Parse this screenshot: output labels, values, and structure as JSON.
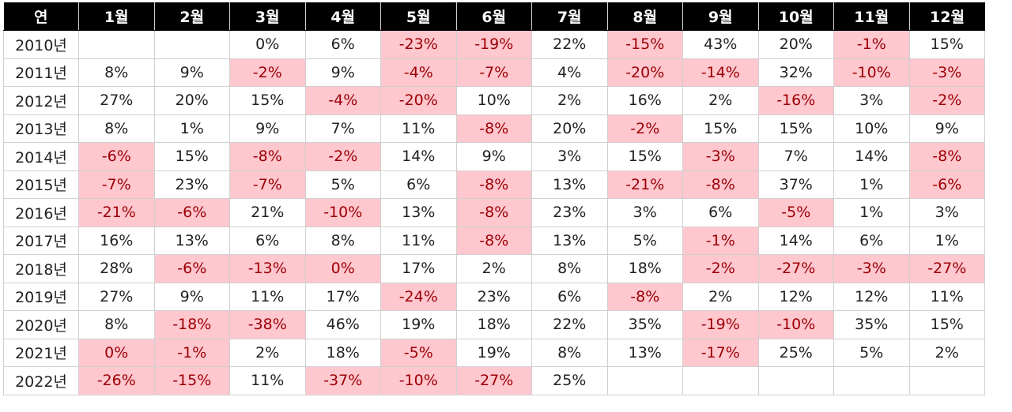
{
  "chart_data": {
    "type": "table",
    "columns": [
      "연",
      "1월",
      "2월",
      "3월",
      "4월",
      "5월",
      "6월",
      "7월",
      "8월",
      "9월",
      "10월",
      "11월",
      "12월"
    ],
    "rows": [
      {
        "year": "2010년",
        "values": [
          "",
          "",
          "0%",
          "6%",
          "-23%",
          "-19%",
          "22%",
          "-15%",
          "43%",
          "20%",
          "-1%",
          "15%"
        ]
      },
      {
        "year": "2011년",
        "values": [
          "8%",
          "9%",
          "-2%",
          "9%",
          "-4%",
          "-7%",
          "4%",
          "-20%",
          "-14%",
          "32%",
          "-10%",
          "-3%"
        ]
      },
      {
        "year": "2012년",
        "values": [
          "27%",
          "20%",
          "15%",
          "-4%",
          "-20%",
          "10%",
          "2%",
          "16%",
          "2%",
          "-16%",
          "3%",
          "-2%"
        ]
      },
      {
        "year": "2013년",
        "values": [
          "8%",
          "1%",
          "9%",
          "7%",
          "11%",
          "-8%",
          "20%",
          "-2%",
          "15%",
          "15%",
          "10%",
          "9%"
        ]
      },
      {
        "year": "2014년",
        "values": [
          "-6%",
          "15%",
          "-8%",
          "-2%",
          "14%",
          "9%",
          "3%",
          "15%",
          "-3%",
          "7%",
          "14%",
          "-8%"
        ]
      },
      {
        "year": "2015년",
        "values": [
          "-7%",
          "23%",
          "-7%",
          "5%",
          "6%",
          "-8%",
          "13%",
          "-21%",
          "-8%",
          "37%",
          "1%",
          "-6%"
        ]
      },
      {
        "year": "2016년",
        "values": [
          "-21%",
          "-6%",
          "21%",
          "-10%",
          "13%",
          "-8%",
          "23%",
          "3%",
          "6%",
          "-5%",
          "1%",
          "3%"
        ]
      },
      {
        "year": "2017년",
        "values": [
          "16%",
          "13%",
          "6%",
          "8%",
          "11%",
          "-8%",
          "13%",
          "5%",
          "-1%",
          "14%",
          "6%",
          "1%"
        ]
      },
      {
        "year": "2018년",
        "values": [
          "28%",
          "-6%",
          "-13%",
          "0%",
          "17%",
          "2%",
          "8%",
          "18%",
          "-2%",
          "-27%",
          "-3%",
          "-27%"
        ]
      },
      {
        "year": "2019년",
        "values": [
          "27%",
          "9%",
          "11%",
          "17%",
          "-24%",
          "23%",
          "6%",
          "-8%",
          "2%",
          "12%",
          "12%",
          "11%"
        ]
      },
      {
        "year": "2020년",
        "values": [
          "8%",
          "-18%",
          "-38%",
          "46%",
          "19%",
          "18%",
          "22%",
          "35%",
          "-19%",
          "-10%",
          "35%",
          "15%"
        ]
      },
      {
        "year": "2021년",
        "values": [
          "0%",
          "-1%",
          "2%",
          "18%",
          "-5%",
          "19%",
          "8%",
          "13%",
          "-17%",
          "25%",
          "5%",
          "2%"
        ]
      },
      {
        "year": "2022년",
        "values": [
          "-26%",
          "-15%",
          "11%",
          "-37%",
          "-10%",
          "-27%",
          "25%",
          "",
          "",
          "",
          "",
          ""
        ]
      }
    ],
    "highlighted_cells": [
      [
        0,
        4
      ],
      [
        0,
        5
      ],
      [
        0,
        7
      ],
      [
        0,
        10
      ],
      [
        1,
        2
      ],
      [
        1,
        4
      ],
      [
        1,
        5
      ],
      [
        1,
        7
      ],
      [
        1,
        8
      ],
      [
        1,
        10
      ],
      [
        1,
        11
      ],
      [
        2,
        3
      ],
      [
        2,
        4
      ],
      [
        2,
        9
      ],
      [
        2,
        11
      ],
      [
        3,
        5
      ],
      [
        3,
        7
      ],
      [
        4,
        0
      ],
      [
        4,
        2
      ],
      [
        4,
        3
      ],
      [
        4,
        8
      ],
      [
        4,
        11
      ],
      [
        5,
        0
      ],
      [
        5,
        2
      ],
      [
        5,
        5
      ],
      [
        5,
        7
      ],
      [
        5,
        8
      ],
      [
        5,
        11
      ],
      [
        6,
        0
      ],
      [
        6,
        1
      ],
      [
        6,
        3
      ],
      [
        6,
        5
      ],
      [
        6,
        9
      ],
      [
        7,
        5
      ],
      [
        7,
        8
      ],
      [
        8,
        1
      ],
      [
        8,
        2
      ],
      [
        8,
        3
      ],
      [
        8,
        8
      ],
      [
        8,
        9
      ],
      [
        8,
        10
      ],
      [
        8,
        11
      ],
      [
        9,
        4
      ],
      [
        9,
        7
      ],
      [
        10,
        1
      ],
      [
        10,
        2
      ],
      [
        10,
        8
      ],
      [
        10,
        9
      ],
      [
        11,
        0
      ],
      [
        11,
        1
      ],
      [
        11,
        4
      ],
      [
        11,
        8
      ],
      [
        12,
        0
      ],
      [
        12,
        1
      ],
      [
        12,
        3
      ],
      [
        12,
        4
      ],
      [
        12,
        5
      ]
    ]
  },
  "colors": {
    "header_bg": "#000000",
    "header_text": "#ffffff",
    "highlight_bg": "#ffc7ce",
    "highlight_text": "#9c0006",
    "text": "#222222",
    "grid": "#d0d0d0"
  }
}
